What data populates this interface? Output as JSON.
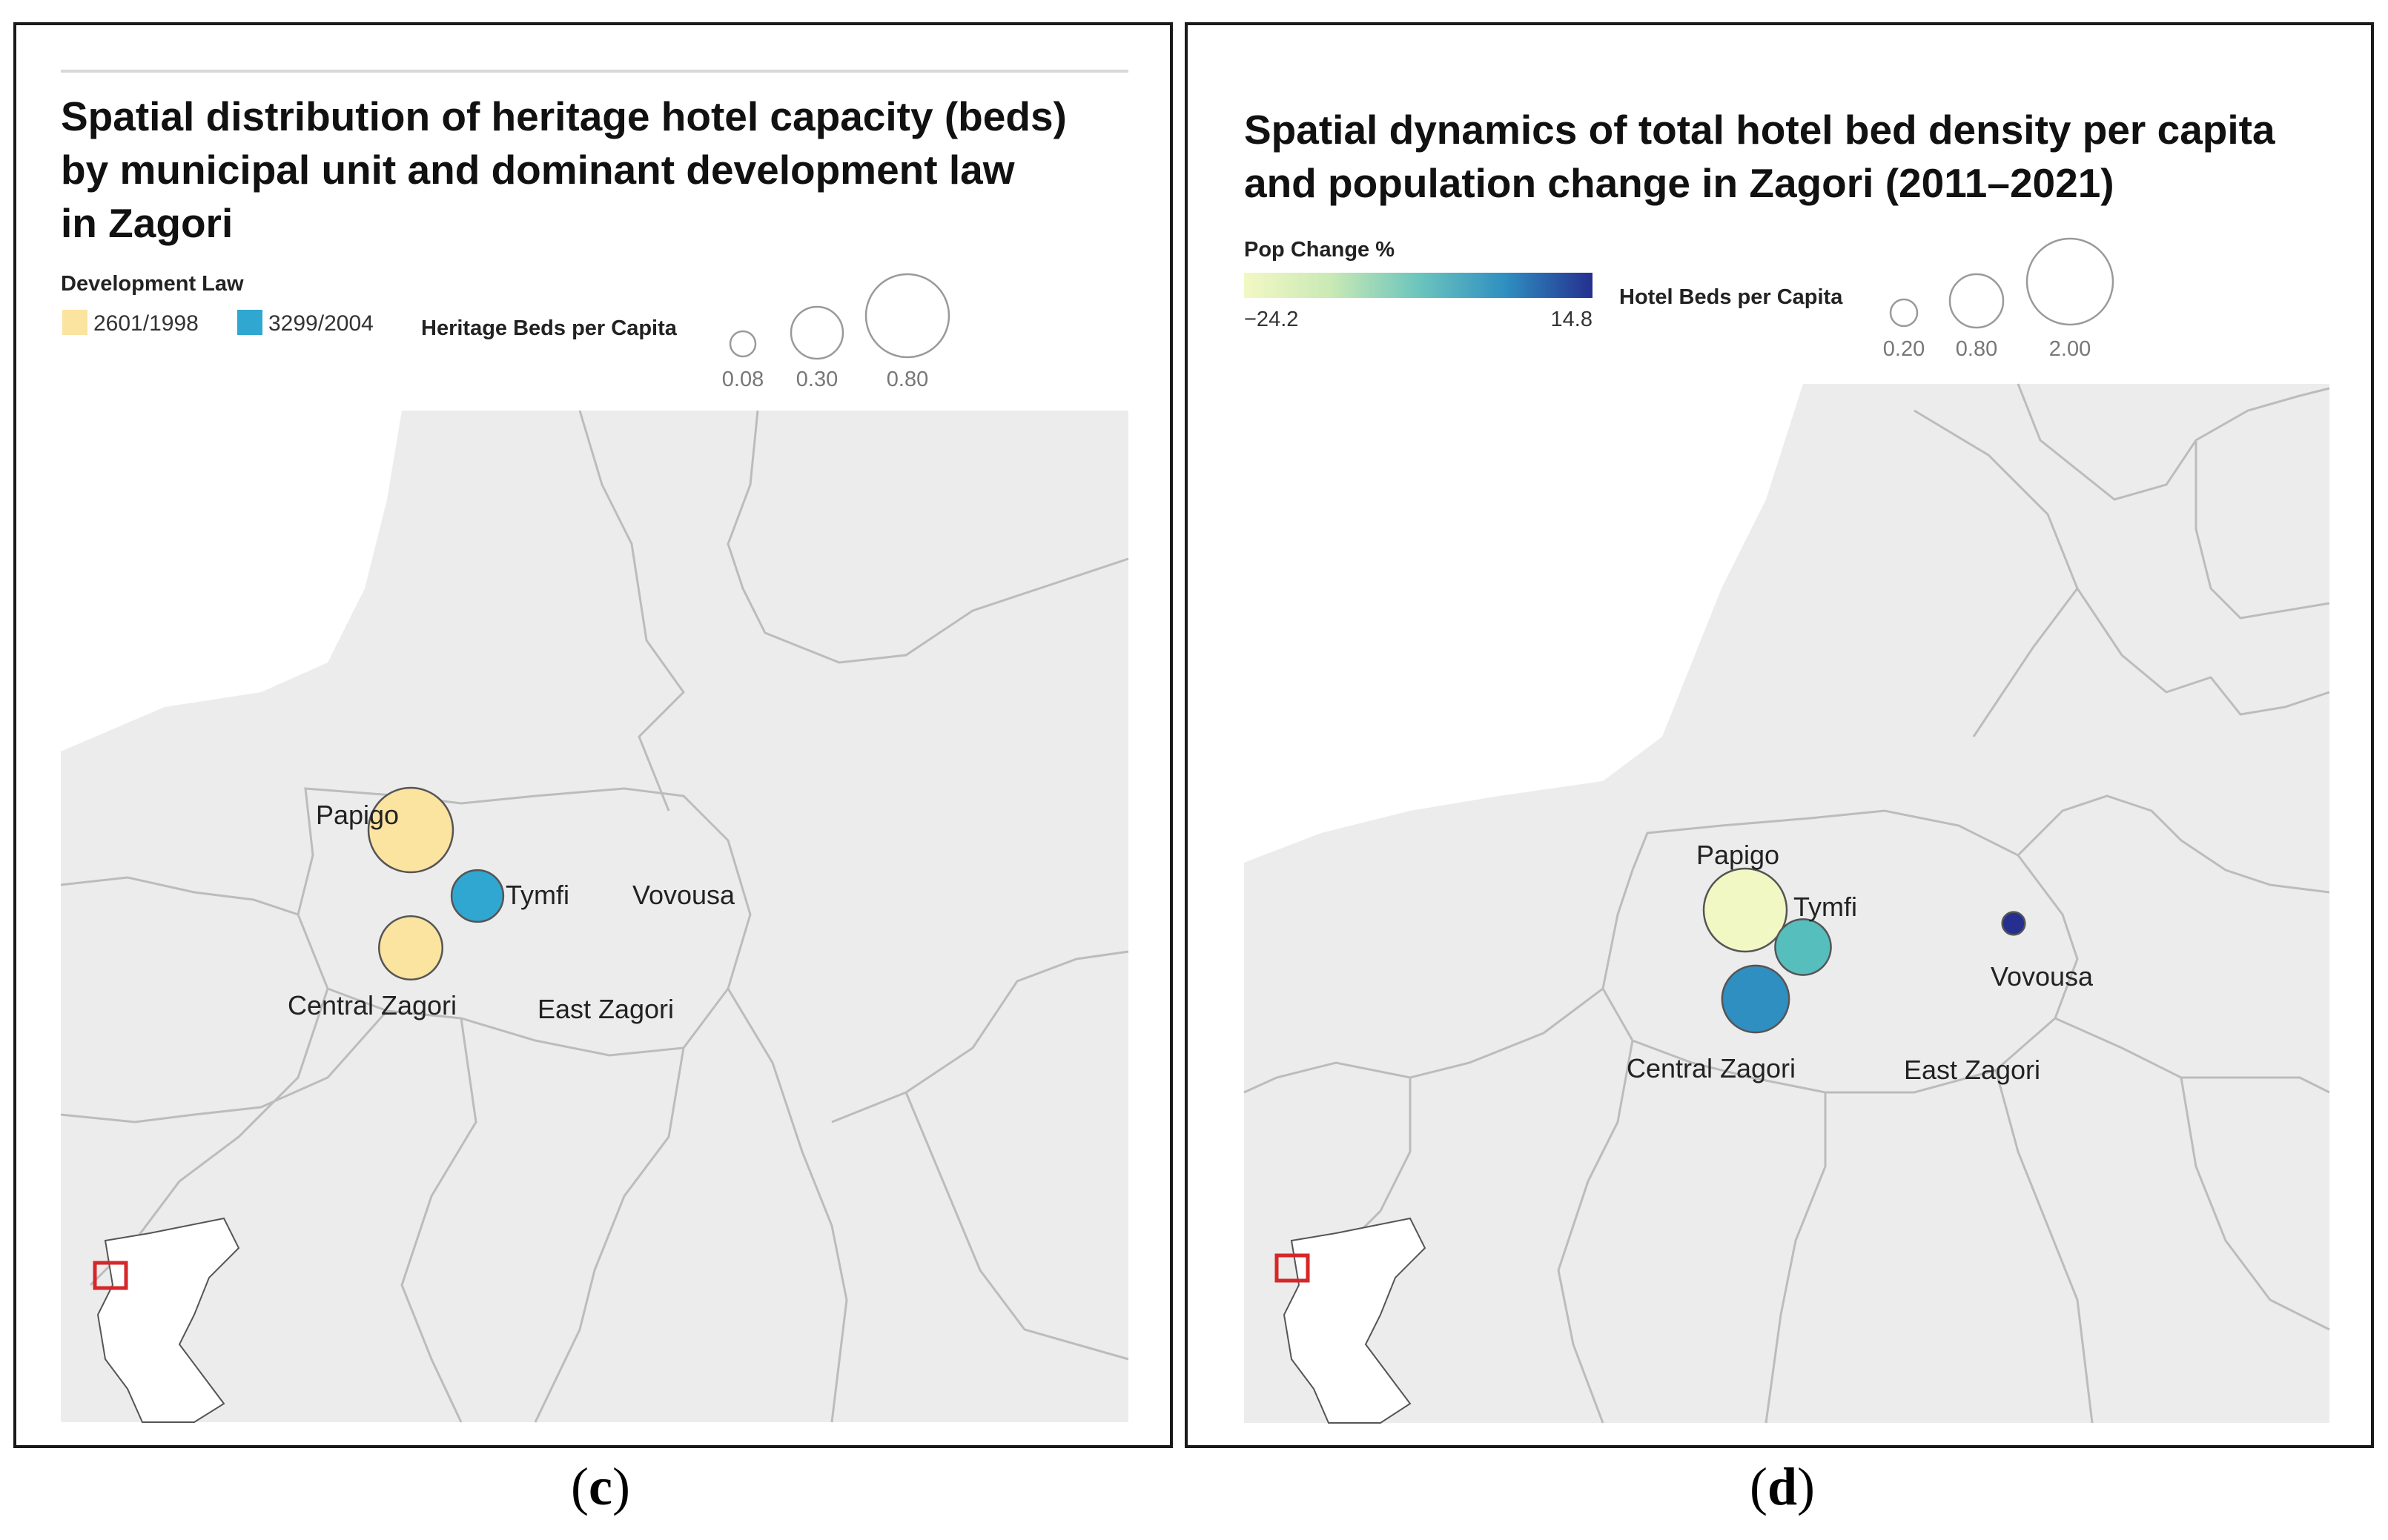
{
  "colors": {
    "map_land": "#ececec",
    "map_border": "#bcbcbc",
    "law_2601": "#fbe3a0",
    "law_3299": "#2fa7d1",
    "inset_box": "#d62728",
    "pop_low": "#f2f8c4",
    "pop_mid": "#52bdbd",
    "pop_high": "#252f8f"
  },
  "panel_c": {
    "title_line1": "Spatial distribution of heritage hotel capacity (beds)",
    "title_line2": "by municipal unit and dominant development law",
    "title_line3": "in Zagori",
    "legend_law_title": "Development Law",
    "legend_law_items": [
      {
        "label": "2601/1998",
        "color": "#fbe3a0"
      },
      {
        "label": "3299/2004",
        "color": "#2fa7d1"
      }
    ],
    "legend_size_title": "Heritage Beds per Capita",
    "legend_size_values": [
      "0.08",
      "0.30",
      "0.80"
    ],
    "places": [
      {
        "name": "Papigo",
        "law": "2601/1998",
        "beds_per_capita": 0.8
      },
      {
        "name": "Tymfi",
        "law": "3299/2004",
        "beds_per_capita": 0.3
      },
      {
        "name": "Vovousa"
      },
      {
        "name": "Central Zagori",
        "law": "2601/1998",
        "beds_per_capita": 0.45
      },
      {
        "name": "East Zagori"
      }
    ],
    "caption_letter": "c"
  },
  "panel_d": {
    "title_line1": "Spatial dynamics of total hotel bed density per capita",
    "title_line2": "and population change in Zagori (2011–2021)",
    "legend_pop_title": "Pop Change %",
    "legend_pop_min": "−24.2",
    "legend_pop_max": "14.8",
    "legend_size_title": "Hotel Beds per Capita",
    "legend_size_values": [
      "0.20",
      "0.80",
      "2.00"
    ],
    "places": [
      {
        "name": "Papigo",
        "beds_per_capita": 2.0,
        "pop_change_pct": -24.2
      },
      {
        "name": "Tymfi",
        "beds_per_capita": 0.9,
        "pop_change_pct": -5
      },
      {
        "name": "Vovousa",
        "beds_per_capita": 0.15,
        "pop_change_pct": 14.8
      },
      {
        "name": "Central Zagori",
        "beds_per_capita": 1.3,
        "pop_change_pct": 5
      },
      {
        "name": "East Zagori"
      }
    ],
    "caption_letter": "d"
  }
}
